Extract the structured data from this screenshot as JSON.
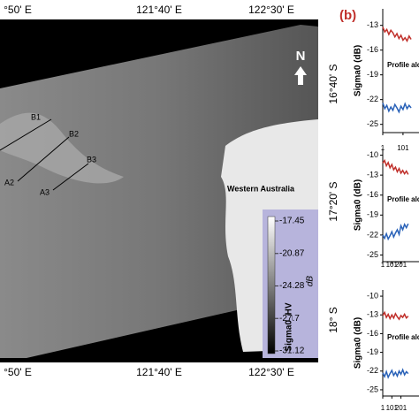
{
  "panel_label": "(b)",
  "map": {
    "top_lon": [
      "°50' E",
      "121°40' E",
      "122°30' E"
    ],
    "bottom_lon": [
      "°50' E",
      "121°40' E",
      "122°30' E"
    ],
    "lat": [
      "16°40' S",
      "17°20' S",
      "18° S"
    ],
    "north": "N",
    "points": [
      "B1",
      "B2",
      "B3",
      "A2",
      "A3"
    ],
    "place": "Western Australia",
    "colorbar": {
      "label": "Sigma0_HV",
      "unit": "dB",
      "ticks": [
        -17.45,
        -20.87,
        -24.28,
        -27.7,
        -31.12
      ]
    }
  },
  "profiles": [
    {
      "ylabel": "Sigma0 (dB)",
      "text": "Profile along",
      "ylim": [
        -26,
        -11
      ],
      "yticks": [
        -13,
        -16,
        -19,
        -22,
        -25
      ],
      "xlim": [
        1,
        180
      ],
      "xticks": [
        1,
        101
      ],
      "x": [
        1,
        11,
        21,
        31,
        41,
        51,
        61,
        71,
        81,
        91,
        101,
        111,
        121,
        131,
        141
      ],
      "series": [
        {
          "color": "#c0302b",
          "values": [
            -13.2,
            -13.8,
            -13.5,
            -14.1,
            -13.6,
            -13.9,
            -14.4,
            -14.0,
            -14.6,
            -14.2,
            -14.8,
            -14.5,
            -14.9,
            -14.3,
            -14.7
          ]
        },
        {
          "color": "#2a62b8",
          "values": [
            -22.4,
            -23.1,
            -22.7,
            -23.4,
            -22.9,
            -23.3,
            -22.6,
            -23.0,
            -23.5,
            -22.8,
            -23.2,
            -22.5,
            -23.1,
            -22.7,
            -23.0
          ]
        }
      ]
    },
    {
      "ylabel": "Sigma0 (dB)",
      "text": "Profile along",
      "ylim": [
        -26,
        -9
      ],
      "yticks": [
        -10,
        -13,
        -16,
        -19,
        -22,
        -25
      ],
      "xlim": [
        1,
        400
      ],
      "xticks": [
        1,
        101,
        201
      ],
      "x": [
        1,
        21,
        41,
        61,
        81,
        101,
        121,
        141,
        161,
        181,
        201,
        221,
        241,
        261,
        281
      ],
      "series": [
        {
          "color": "#c0302b",
          "values": [
            -11.2,
            -10.8,
            -11.6,
            -11.1,
            -11.9,
            -11.4,
            -12.2,
            -11.8,
            -12.5,
            -12.0,
            -12.7,
            -12.3,
            -12.8,
            -12.4,
            -12.9
          ]
        },
        {
          "color": "#2a62b8",
          "values": [
            -22.0,
            -22.5,
            -21.8,
            -22.6,
            -22.1,
            -21.5,
            -22.3,
            -21.7,
            -21.2,
            -21.9,
            -20.6,
            -21.2,
            -20.4,
            -20.9,
            -20.3
          ]
        }
      ]
    },
    {
      "ylabel": "Sigma0 (dB)",
      "text": "Profile along",
      "ylim": [
        -26,
        -9
      ],
      "yticks": [
        -10,
        -13,
        -16,
        -19,
        -22,
        -25
      ],
      "xlim": [
        1,
        400
      ],
      "xticks": [
        1,
        101,
        201
      ],
      "x": [
        1,
        21,
        41,
        61,
        81,
        101,
        121,
        141,
        161,
        181,
        201,
        221,
        241,
        261,
        281
      ],
      "series": [
        {
          "color": "#c0302b",
          "values": [
            -13.1,
            -12.6,
            -13.4,
            -12.9,
            -13.6,
            -13.0,
            -13.5,
            -12.8,
            -13.3,
            -13.7,
            -13.1,
            -13.4,
            -12.9,
            -13.5,
            -13.2
          ]
        },
        {
          "color": "#2a62b8",
          "values": [
            -22.3,
            -22.9,
            -22.1,
            -23.0,
            -22.4,
            -21.9,
            -22.7,
            -22.2,
            -22.8,
            -22.0,
            -22.5,
            -21.8,
            -22.6,
            -22.1,
            -22.4
          ]
        }
      ]
    }
  ]
}
